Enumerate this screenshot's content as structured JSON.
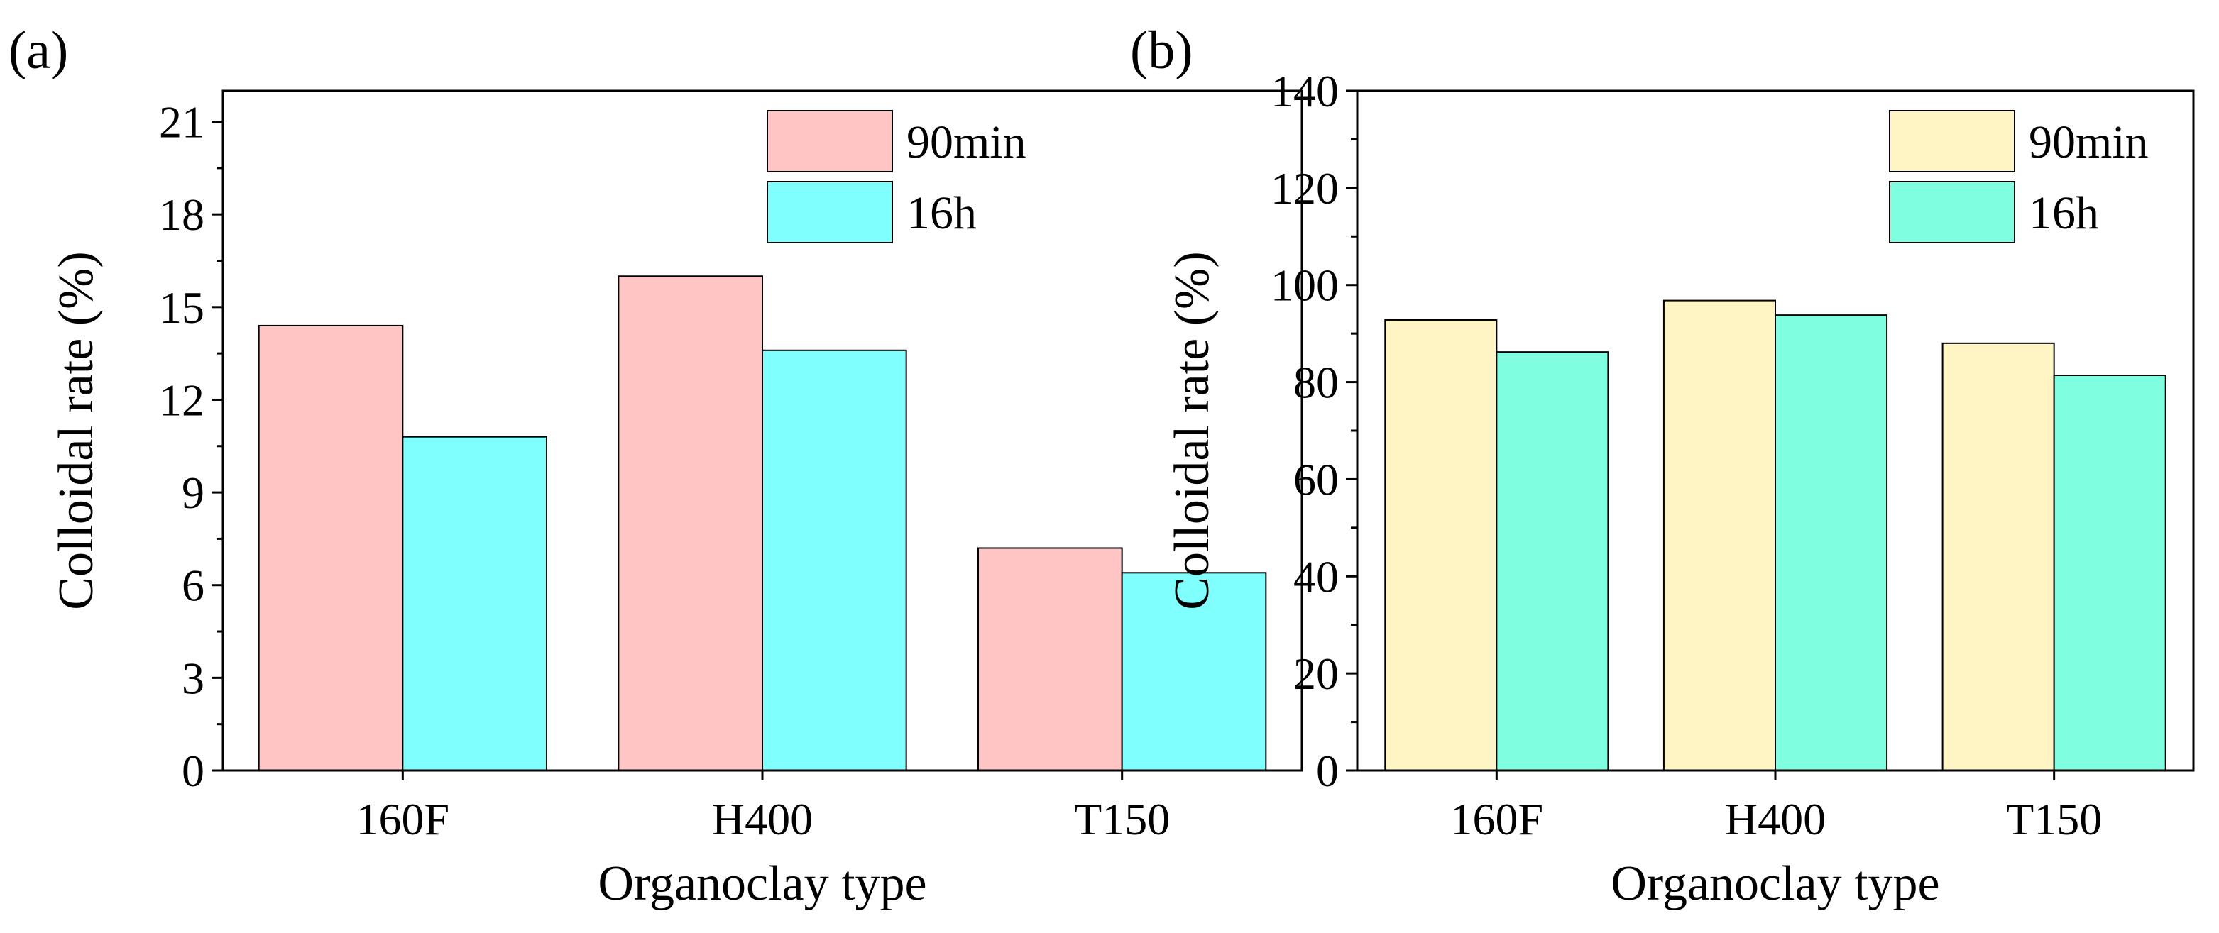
{
  "chart_data": [
    {
      "type": "bar",
      "panel_label": "(a)",
      "categories": [
        "160F",
        "H400",
        "T150"
      ],
      "series": [
        {
          "name": "90min",
          "values": [
            14.4,
            16.0,
            7.2
          ],
          "color": "#ffc4c4"
        },
        {
          "name": "16h",
          "values": [
            10.8,
            13.6,
            6.4
          ],
          "color": "#80ffff"
        }
      ],
      "xlabel": "Organoclay type",
      "ylabel": "Colloidal rate (%)",
      "ylim": [
        0,
        22
      ],
      "yticks": [
        "0",
        "3",
        "6",
        "9",
        "12",
        "15",
        "18",
        "21"
      ],
      "legend_position": "top-right"
    },
    {
      "type": "bar",
      "panel_label": "(b)",
      "categories": [
        "160F",
        "H400",
        "T150"
      ],
      "series": [
        {
          "name": "90min",
          "values": [
            92.8,
            96.8,
            88.0
          ],
          "color": "#fff5c4"
        },
        {
          "name": "16h",
          "values": [
            86.2,
            93.8,
            81.4
          ],
          "color": "#7fffe0"
        }
      ],
      "xlabel": "Organoclay type",
      "ylabel": "Colloidal rate (%)",
      "ylim": [
        0,
        140
      ],
      "yticks": [
        "0",
        "20",
        "40",
        "60",
        "80",
        "100",
        "120",
        "140"
      ],
      "legend_position": "top-right"
    }
  ]
}
